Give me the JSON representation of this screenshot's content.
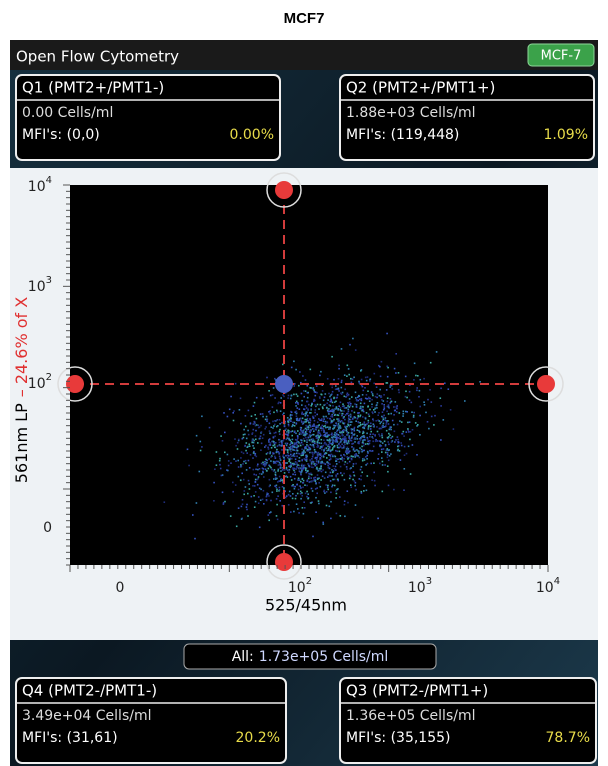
{
  "page_title": "MCF7",
  "app": {
    "title": "Open Flow Cytometry",
    "badge": "MCF-7"
  },
  "quadrants": [
    {
      "label": "Q1 (PMT2+/PMT1-)",
      "concentration": "0.00 Cells/ml",
      "mfi": "MFI's: (0,0)",
      "percent": "0.00%"
    },
    {
      "label": "Q2 (PMT2+/PMT1+)",
      "concentration": "1.88e+03 Cells/ml",
      "mfi": "MFI's: (119,448)",
      "percent": "1.09%"
    },
    {
      "label": "Q4 (PMT2-/PMT1-)",
      "concentration": "3.49e+04 Cells/ml",
      "mfi": "MFI's: (31,61)",
      "percent": "20.2%"
    },
    {
      "label": "Q3 (PMT2-/PMT1+)",
      "concentration": "1.36e+05 Cells/ml",
      "mfi": "MFI's: (35,155)",
      "percent": "78.7%"
    }
  ],
  "plot": {
    "y_axis_label": "561nm LP",
    "y_axis_gate": "– 24.6% of X",
    "x_axis_label": "525/45nm",
    "y_ticks": [
      {
        "base": "10",
        "exp": "4"
      },
      {
        "base": "10",
        "exp": "3"
      },
      {
        "base": "10",
        "exp": "2"
      },
      {
        "base": "0",
        "exp": ""
      }
    ],
    "x_ticks": [
      {
        "base": "0",
        "exp": ""
      },
      {
        "base": "10",
        "exp": "2"
      },
      {
        "base": "10",
        "exp": "3"
      },
      {
        "base": "10",
        "exp": "4"
      }
    ]
  },
  "total": {
    "label": "All:",
    "value": "1.73e+05 Cells/ml"
  }
}
